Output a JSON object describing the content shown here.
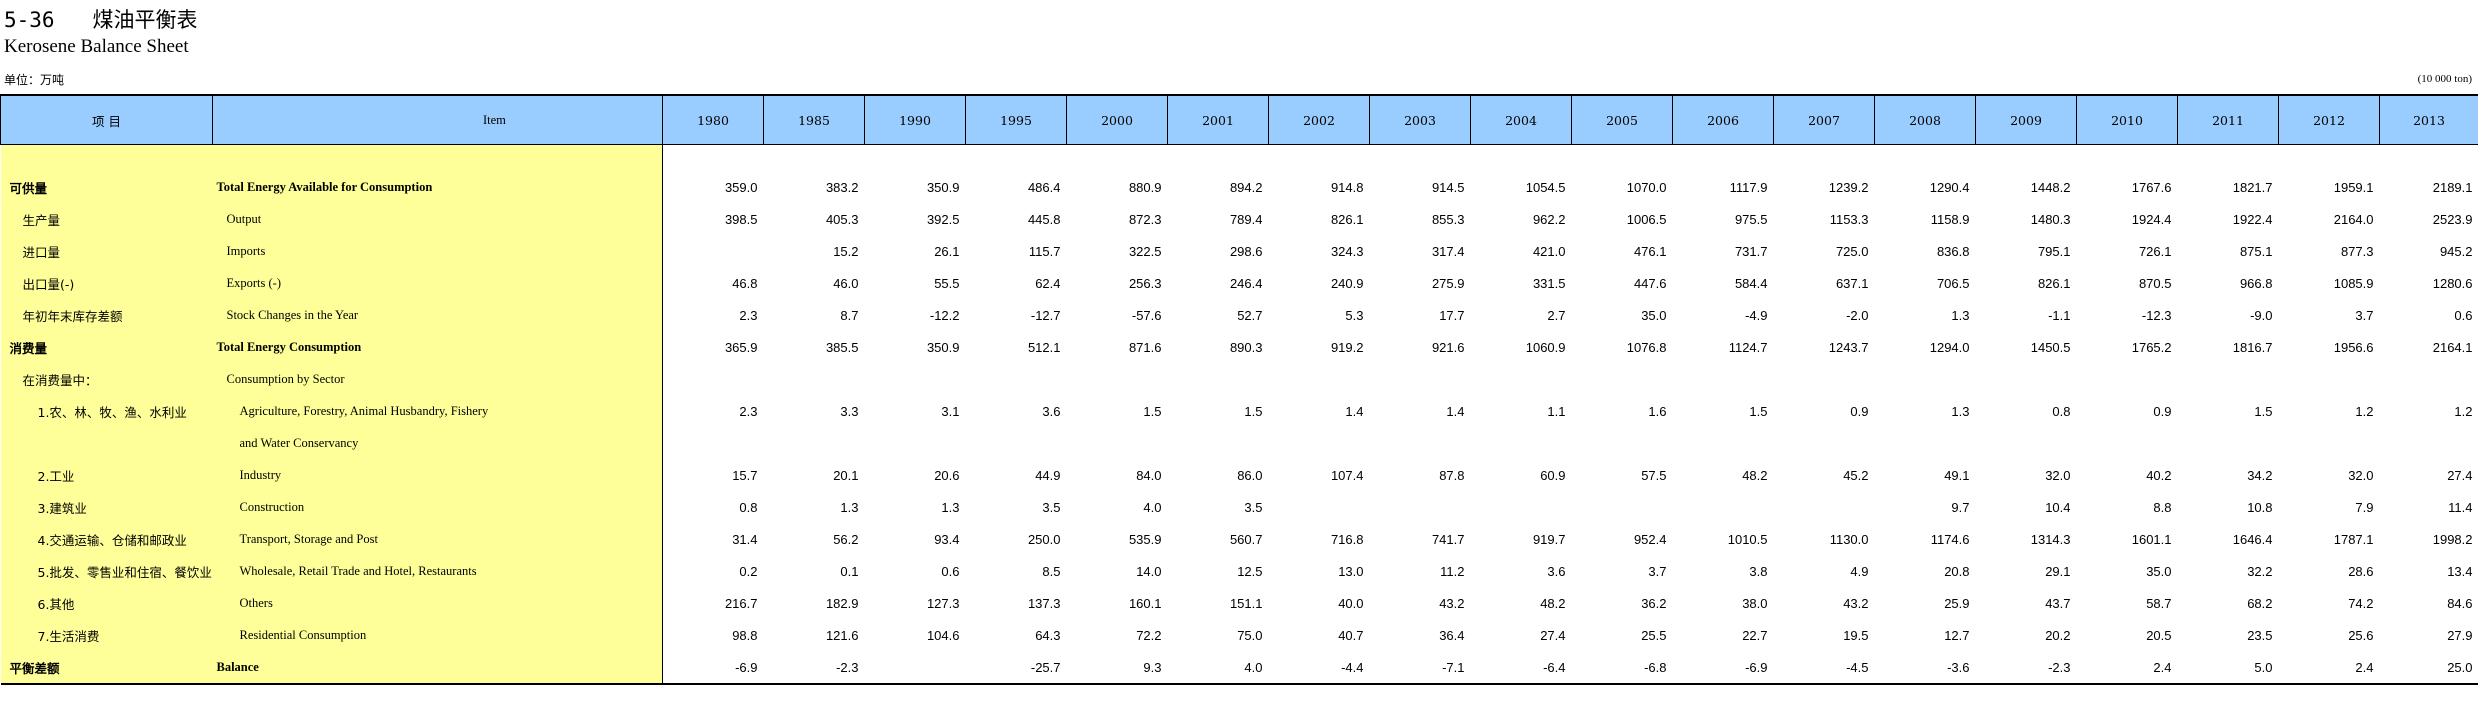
{
  "header": {
    "title_cn": "5-36   煤油平衡表",
    "title_en": "Kerosene  Balance Sheet",
    "unit_cn": "单位：万吨",
    "unit_en": "(10 000 ton)"
  },
  "columns": {
    "item_cn": "项    目",
    "item_en": "Item",
    "years": [
      "1980",
      "1985",
      "1990",
      "1995",
      "2000",
      "2001",
      "2002",
      "2003",
      "2004",
      "2005",
      "2006",
      "2007",
      "2008",
      "2009",
      "2010",
      "2011",
      "2012",
      "2013"
    ]
  },
  "rows": [
    {
      "cn": "可供量",
      "en": "Total Energy Available for Consumption",
      "bold": true,
      "indent": 0,
      "values": [
        "359.0",
        "383.2",
        "350.9",
        "486.4",
        "880.9",
        "894.2",
        "914.8",
        "914.5",
        "1054.5",
        "1070.0",
        "1117.9",
        "1239.2",
        "1290.4",
        "1448.2",
        "1767.6",
        "1821.7",
        "1959.1",
        "2189.1"
      ]
    },
    {
      "cn": "生产量",
      "en": "Output",
      "bold": false,
      "indent": 1,
      "values": [
        "398.5",
        "405.3",
        "392.5",
        "445.8",
        "872.3",
        "789.4",
        "826.1",
        "855.3",
        "962.2",
        "1006.5",
        "975.5",
        "1153.3",
        "1158.9",
        "1480.3",
        "1924.4",
        "1922.4",
        "2164.0",
        "2523.9"
      ]
    },
    {
      "cn": "进口量",
      "en": "Imports",
      "bold": false,
      "indent": 1,
      "values": [
        "",
        "15.2",
        "26.1",
        "115.7",
        "322.5",
        "298.6",
        "324.3",
        "317.4",
        "421.0",
        "476.1",
        "731.7",
        "725.0",
        "836.8",
        "795.1",
        "726.1",
        "875.1",
        "877.3",
        "945.2"
      ]
    },
    {
      "cn": "出口量(-)",
      "en": "Exports (-)",
      "bold": false,
      "indent": 1,
      "values": [
        "46.8",
        "46.0",
        "55.5",
        "62.4",
        "256.3",
        "246.4",
        "240.9",
        "275.9",
        "331.5",
        "447.6",
        "584.4",
        "637.1",
        "706.5",
        "826.1",
        "870.5",
        "966.8",
        "1085.9",
        "1280.6"
      ]
    },
    {
      "cn": "年初年末库存差额",
      "en": "Stock Changes in the Year",
      "bold": false,
      "indent": 1,
      "values": [
        "2.3",
        "8.7",
        "-12.2",
        "-12.7",
        "-57.6",
        "52.7",
        "5.3",
        "17.7",
        "2.7",
        "35.0",
        "-4.9",
        "-2.0",
        "1.3",
        "-1.1",
        "-12.3",
        "-9.0",
        "3.7",
        "0.6"
      ]
    },
    {
      "cn": "消费量",
      "en": "Total Energy Consumption",
      "bold": true,
      "indent": 0,
      "values": [
        "365.9",
        "385.5",
        "350.9",
        "512.1",
        "871.6",
        "890.3",
        "919.2",
        "921.6",
        "1060.9",
        "1076.8",
        "1124.7",
        "1243.7",
        "1294.0",
        "1450.5",
        "1765.2",
        "1816.7",
        "1956.6",
        "2164.1"
      ]
    },
    {
      "cn": "在消费量中：",
      "en": "Consumption by Sector",
      "bold": false,
      "indent": 1,
      "values": [
        "",
        "",
        "",
        "",
        "",
        "",
        "",
        "",
        "",
        "",
        "",
        "",
        "",
        "",
        "",
        "",
        "",
        ""
      ]
    },
    {
      "cn": "1.农、林、牧、渔、水利业",
      "en": "Agriculture, Forestry, Animal Husbandry, Fishery",
      "bold": false,
      "indent": 2,
      "values": [
        "2.3",
        "3.3",
        "3.1",
        "3.6",
        "1.5",
        "1.5",
        "1.4",
        "1.4",
        "1.1",
        "1.6",
        "1.5",
        "0.9",
        "1.3",
        "0.8",
        "0.9",
        "1.5",
        "1.2",
        "1.2"
      ]
    },
    {
      "cn": "",
      "en": "and Water Conservancy",
      "bold": false,
      "indent": 2,
      "values": [
        "",
        "",
        "",
        "",
        "",
        "",
        "",
        "",
        "",
        "",
        "",
        "",
        "",
        "",
        "",
        "",
        "",
        ""
      ]
    },
    {
      "cn": "2.工业",
      "en": "Industry",
      "bold": false,
      "indent": 2,
      "values": [
        "15.7",
        "20.1",
        "20.6",
        "44.9",
        "84.0",
        "86.0",
        "107.4",
        "87.8",
        "60.9",
        "57.5",
        "48.2",
        "45.2",
        "49.1",
        "32.0",
        "40.2",
        "34.2",
        "32.0",
        "27.4"
      ]
    },
    {
      "cn": "3.建筑业",
      "en": "Construction",
      "bold": false,
      "indent": 2,
      "values": [
        "0.8",
        "1.3",
        "1.3",
        "3.5",
        "4.0",
        "3.5",
        "",
        "",
        "",
        "",
        "",
        "",
        "9.7",
        "10.4",
        "8.8",
        "10.8",
        "7.9",
        "11.4"
      ]
    },
    {
      "cn": "4.交通运输、仓储和邮政业",
      "en": "Transport, Storage and Post",
      "bold": false,
      "indent": 2,
      "values": [
        "31.4",
        "56.2",
        "93.4",
        "250.0",
        "535.9",
        "560.7",
        "716.8",
        "741.7",
        "919.7",
        "952.4",
        "1010.5",
        "1130.0",
        "1174.6",
        "1314.3",
        "1601.1",
        "1646.4",
        "1787.1",
        "1998.2"
      ]
    },
    {
      "cn": "5.批发、零售业和住宿、餐饮业",
      "en": "Wholesale, Retail Trade and Hotel, Restaurants",
      "bold": false,
      "indent": 2,
      "values": [
        "0.2",
        "0.1",
        "0.6",
        "8.5",
        "14.0",
        "12.5",
        "13.0",
        "11.2",
        "3.6",
        "3.7",
        "3.8",
        "4.9",
        "20.8",
        "29.1",
        "35.0",
        "32.2",
        "28.6",
        "13.4"
      ]
    },
    {
      "cn": "6.其他",
      "en": "Others",
      "bold": false,
      "indent": 2,
      "values": [
        "216.7",
        "182.9",
        "127.3",
        "137.3",
        "160.1",
        "151.1",
        "40.0",
        "43.2",
        "48.2",
        "36.2",
        "38.0",
        "43.2",
        "25.9",
        "43.7",
        "58.7",
        "68.2",
        "74.2",
        "84.6"
      ]
    },
    {
      "cn": "7.生活消费",
      "en": "Residential Consumption",
      "bold": false,
      "indent": 2,
      "values": [
        "98.8",
        "121.6",
        "104.6",
        "64.3",
        "72.2",
        "75.0",
        "40.7",
        "36.4",
        "27.4",
        "25.5",
        "22.7",
        "19.5",
        "12.7",
        "20.2",
        "20.5",
        "23.5",
        "25.6",
        "27.9"
      ]
    },
    {
      "cn": "平衡差额",
      "en": "Balance",
      "bold": true,
      "indent": 0,
      "values": [
        "-6.9",
        "-2.3",
        "",
        "-25.7",
        "9.3",
        "4.0",
        "-4.4",
        "-7.1",
        "-6.4",
        "-6.8",
        "-6.9",
        "-4.5",
        "-3.6",
        "-2.3",
        "2.4",
        "5.0",
        "2.4",
        "25.0"
      ]
    }
  ]
}
